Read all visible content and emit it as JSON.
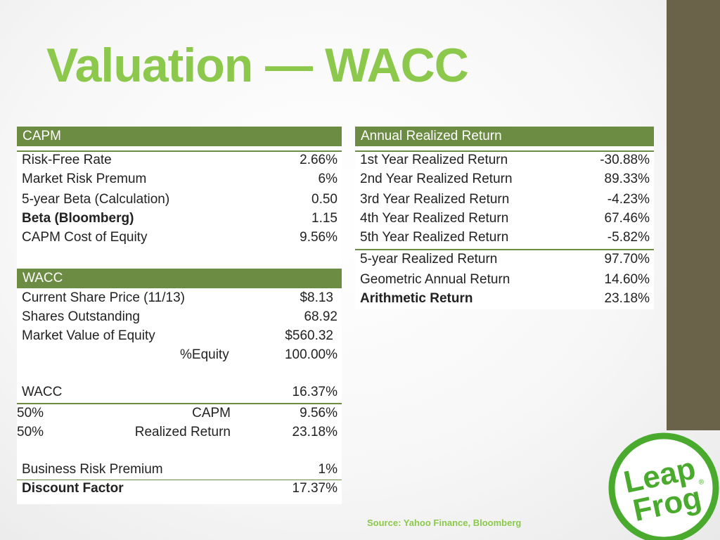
{
  "slide": {
    "title": "Valuation — WACC",
    "source": "Source: Yahoo Finance, Bloomberg",
    "accent_color": "#8cc84b",
    "band_color": "#6d8c43",
    "sidebar_color": "#6b624a",
    "logo": {
      "text_line1": "Leap",
      "text_line2": "Frog",
      "registered": "®",
      "color": "#4aaa2e"
    }
  },
  "capm": {
    "header": "CAPM",
    "rows": [
      {
        "label": "Risk-Free Rate",
        "value": "2.66%"
      },
      {
        "label": "Market Risk Premum",
        "value": "6%"
      },
      {
        "label": "5-year Beta (Calculation)",
        "value": "0.50"
      },
      {
        "label": "Beta (Bloomberg)",
        "value": "1.15"
      },
      {
        "label": "CAPM Cost of Equity",
        "value": "9.56%"
      }
    ]
  },
  "wacc": {
    "header": "WACC",
    "rows": [
      {
        "label": "Current Share Price (11/13)",
        "value": "$8.13"
      },
      {
        "label": "Shares Outstanding",
        "value": "68.92"
      },
      {
        "label": "Market Value of Equity",
        "value": "$560.32"
      },
      {
        "label": "%Equity",
        "value": "100.00%"
      }
    ],
    "wacc_label": "WACC",
    "wacc_value": "16.37%",
    "weights": [
      {
        "weight": "50%",
        "label": "CAPM",
        "value": "9.56%"
      },
      {
        "weight": "50%",
        "label": "Realized Return",
        "value": "23.18%"
      }
    ],
    "brp_label": "Business Risk Premium",
    "brp_value": "1%",
    "discount_label": "Discount Factor",
    "discount_value": "17.37%"
  },
  "annual": {
    "header": "Annual Realized Return",
    "rows": [
      {
        "label": "1st Year Realized Return",
        "value": "-30.88%"
      },
      {
        "label": "2nd Year Realized Return",
        "value": "89.33%"
      },
      {
        "label": "3rd Year Realized Return",
        "value": "-4.23%"
      },
      {
        "label": "4th Year Realized Return",
        "value": "67.46%"
      },
      {
        "label": "5th Year Realized Return",
        "value": "-5.82%"
      }
    ],
    "summary": [
      {
        "label": "5-year Realized Return",
        "value": "97.70%"
      },
      {
        "label": "Geometric Annual Return",
        "value": "14.60%"
      },
      {
        "label": "Arithmetic Return",
        "value": "23.18%"
      }
    ]
  }
}
